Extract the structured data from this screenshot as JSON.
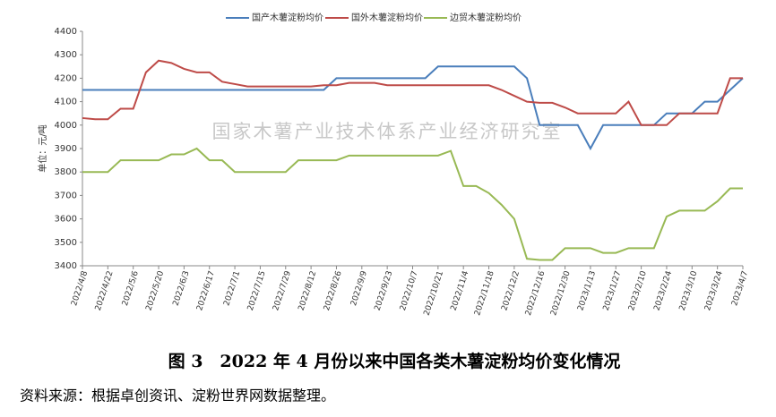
{
  "chart_data": {
    "type": "line",
    "annotation": "国家木薯产业技术体系产业经济研究室",
    "caption": "图 3　2022 年 4 月份以来中国各类木薯淀粉均价变化情况",
    "source": "资料来源：根据卓创资讯、淀粉世界网数据整理。",
    "y_label": "单位：元/吨",
    "categories": [
      "2022/4/8",
      null,
      "2022/4/22",
      null,
      "2022/5/6",
      null,
      "2022/5/20",
      null,
      "2022/6/3",
      null,
      "2022/6/17",
      null,
      "2022/7/1",
      null,
      "2022/7/15",
      null,
      "2022/7/29",
      null,
      "2022/8/12",
      null,
      "2022/8/26",
      null,
      "2022/9/9",
      null,
      "2022/9/23",
      null,
      "2022/10/7",
      null,
      "2022/10/21",
      null,
      "2022/11/4",
      null,
      "2022/11/18",
      null,
      "2022/12/2",
      null,
      "2022/12/16",
      null,
      "2022/12/30",
      null,
      "2023/1/13",
      null,
      "2023/1/27",
      null,
      "2023/2/10",
      null,
      "2023/2/24",
      null,
      "2023/3/10",
      null,
      "2023/3/24",
      null,
      "2023/4/7"
    ],
    "series": [
      {
        "name": "国产木薯淀粉均价",
        "color": "#4a7ebb",
        "values": [
          4150,
          4150,
          4150,
          4150,
          4150,
          4150,
          4150,
          4150,
          4150,
          4150,
          4150,
          4150,
          4150,
          4150,
          4150,
          4150,
          4150,
          4150,
          4150,
          4150,
          4200,
          4200,
          4200,
          4200,
          4200,
          4200,
          4200,
          4200,
          4250,
          4250,
          4250,
          4250,
          4250,
          4250,
          4250,
          4200,
          4000,
          4000,
          4000,
          4000,
          3900,
          4000,
          4000,
          4000,
          4000,
          4000,
          4050,
          4050,
          4050,
          4100,
          4100,
          4150,
          4200
        ]
      },
      {
        "name": "国外木薯淀粉均价",
        "color": "#be4b48",
        "values": [
          4030,
          4025,
          4025,
          4070,
          4070,
          4225,
          4275,
          4265,
          4240,
          4225,
          4225,
          4185,
          4175,
          4165,
          4165,
          4165,
          4165,
          4165,
          4165,
          4170,
          4170,
          4180,
          4180,
          4180,
          4170,
          4170,
          4170,
          4170,
          4170,
          4170,
          4170,
          4170,
          4170,
          4150,
          4125,
          4100,
          4095,
          4095,
          4075,
          4050,
          4050,
          4050,
          4050,
          4100,
          4000,
          4000,
          4000,
          4050,
          4050,
          4050,
          4050,
          4200,
          4200
        ]
      },
      {
        "name": "边贸木薯淀粉均价",
        "color": "#98b954",
        "values": [
          3800,
          3800,
          3800,
          3850,
          3850,
          3850,
          3850,
          3875,
          3875,
          3900,
          3850,
          3850,
          3800,
          3800,
          3800,
          3800,
          3800,
          3850,
          3850,
          3850,
          3850,
          3870,
          3870,
          3870,
          3870,
          3870,
          3870,
          3870,
          3870,
          3890,
          3740,
          3740,
          3710,
          3660,
          3600,
          3430,
          3425,
          3425,
          3475,
          3475,
          3475,
          3455,
          3455,
          3475,
          3475,
          3475,
          3610,
          3635,
          3635,
          3635,
          3675,
          3730,
          3730
        ]
      }
    ],
    "ylim": [
      3400,
      4400
    ],
    "yticks": [
      3400,
      3500,
      3600,
      3700,
      3800,
      3900,
      4000,
      4100,
      4200,
      4300,
      4400
    ],
    "grid": false
  }
}
